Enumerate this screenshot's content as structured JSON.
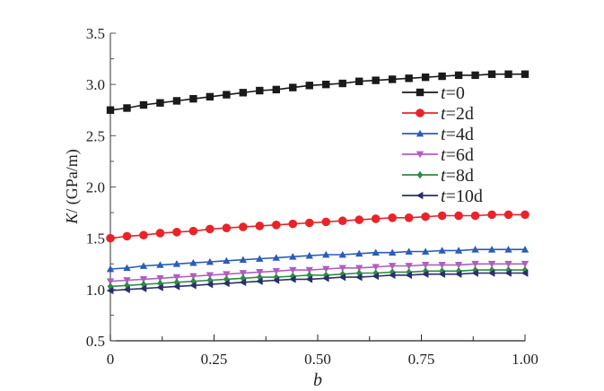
{
  "chart_data": {
    "type": "line",
    "title": "",
    "xlabel": "b",
    "ylabel": "K/ (GPa/m)",
    "ylabel_italic": "K",
    "ylabel_rest": "/ (GPa/m)",
    "xlim": [
      0,
      1.0
    ],
    "ylim": [
      0.5,
      3.5
    ],
    "grid": false,
    "legend_position": "right-upper",
    "x_ticks": [
      {
        "value": 0,
        "label": "0"
      },
      {
        "value": 0.25,
        "label": "0.25"
      },
      {
        "value": 0.5,
        "label": "0.50"
      },
      {
        "value": 0.75,
        "label": "0.75"
      },
      {
        "value": 1.0,
        "label": "1.00"
      }
    ],
    "y_ticks": [
      {
        "value": 0.5,
        "label": "0.5"
      },
      {
        "value": 1.0,
        "label": "1.0"
      },
      {
        "value": 1.5,
        "label": "1.5"
      },
      {
        "value": 2.0,
        "label": "2.0"
      },
      {
        "value": 2.5,
        "label": "2.5"
      },
      {
        "value": 3.0,
        "label": "3.0"
      },
      {
        "value": 3.5,
        "label": "3.5"
      }
    ],
    "x": [
      0,
      0.04,
      0.08,
      0.12,
      0.16,
      0.2,
      0.24,
      0.28,
      0.32,
      0.36,
      0.4,
      0.44,
      0.48,
      0.52,
      0.56,
      0.6,
      0.64,
      0.68,
      0.72,
      0.76,
      0.8,
      0.84,
      0.88,
      0.92,
      0.96,
      1.0
    ],
    "series": [
      {
        "name": "t=0",
        "name_italic": "t",
        "name_rest": "=0",
        "color": "#1a1a1a",
        "marker": "square",
        "values": [
          2.75,
          2.77,
          2.8,
          2.82,
          2.84,
          2.86,
          2.88,
          2.9,
          2.92,
          2.94,
          2.95,
          2.97,
          2.99,
          3.0,
          3.01,
          3.03,
          3.04,
          3.05,
          3.06,
          3.07,
          3.08,
          3.09,
          3.09,
          3.1,
          3.1,
          3.1
        ]
      },
      {
        "name": "t=2d",
        "name_italic": "t",
        "name_rest": "=2d",
        "color": "#e8242a",
        "marker": "circle",
        "values": [
          1.5,
          1.52,
          1.53,
          1.55,
          1.56,
          1.57,
          1.59,
          1.6,
          1.61,
          1.62,
          1.63,
          1.64,
          1.65,
          1.66,
          1.67,
          1.68,
          1.69,
          1.7,
          1.7,
          1.71,
          1.72,
          1.72,
          1.72,
          1.73,
          1.73,
          1.73
        ]
      },
      {
        "name": "t=4d",
        "name_italic": "t",
        "name_rest": "=4d",
        "color": "#2b5cb8",
        "marker": "triangle-up",
        "values": [
          1.2,
          1.21,
          1.23,
          1.24,
          1.25,
          1.26,
          1.27,
          1.28,
          1.29,
          1.3,
          1.31,
          1.32,
          1.33,
          1.34,
          1.34,
          1.35,
          1.36,
          1.36,
          1.37,
          1.37,
          1.38,
          1.38,
          1.39,
          1.39,
          1.39,
          1.39
        ]
      },
      {
        "name": "t=6d",
        "name_italic": "t",
        "name_rest": "=6d",
        "color": "#b05ec0",
        "marker": "triangle-down",
        "values": [
          1.08,
          1.09,
          1.1,
          1.11,
          1.12,
          1.13,
          1.14,
          1.15,
          1.16,
          1.17,
          1.18,
          1.19,
          1.19,
          1.2,
          1.21,
          1.21,
          1.22,
          1.23,
          1.23,
          1.24,
          1.24,
          1.24,
          1.25,
          1.25,
          1.25,
          1.25
        ]
      },
      {
        "name": "t=8d",
        "name_italic": "t",
        "name_rest": "=8d",
        "color": "#2e8b46",
        "marker": "diamond",
        "values": [
          1.03,
          1.04,
          1.05,
          1.06,
          1.07,
          1.08,
          1.09,
          1.1,
          1.11,
          1.12,
          1.12,
          1.13,
          1.14,
          1.14,
          1.15,
          1.16,
          1.16,
          1.17,
          1.17,
          1.18,
          1.18,
          1.18,
          1.19,
          1.19,
          1.19,
          1.19
        ]
      },
      {
        "name": "t=10d",
        "name_italic": "t",
        "name_rest": "=10d",
        "color": "#2a2f6b",
        "marker": "triangle-left",
        "values": [
          0.99,
          1.0,
          1.01,
          1.02,
          1.03,
          1.04,
          1.05,
          1.06,
          1.07,
          1.08,
          1.09,
          1.1,
          1.1,
          1.11,
          1.12,
          1.12,
          1.13,
          1.14,
          1.14,
          1.15,
          1.15,
          1.15,
          1.16,
          1.16,
          1.16,
          1.16
        ]
      }
    ]
  }
}
